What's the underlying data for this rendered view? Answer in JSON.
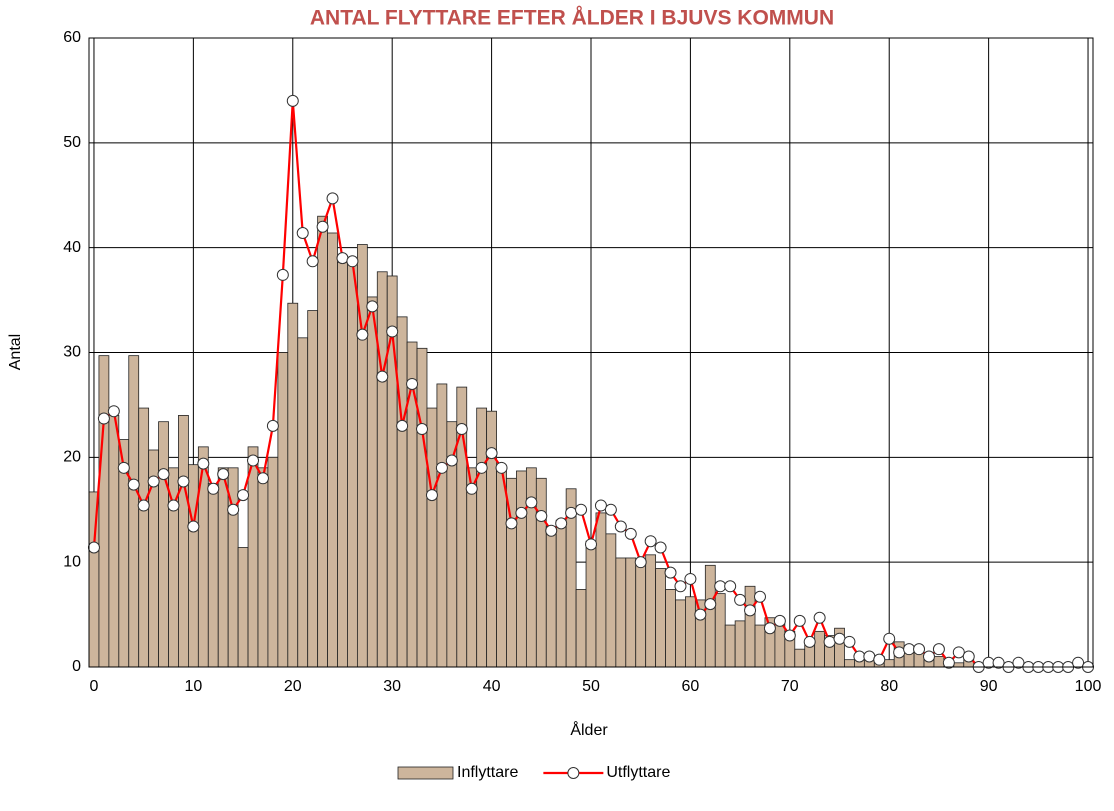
{
  "chart_data": {
    "type": "bar-line",
    "title": "ANTAL FLYTTARE EFTER ÅLDER I BJUVS KOMMUN",
    "x_label": "Ålder",
    "y_label": "Antal",
    "x": [
      0,
      1,
      2,
      3,
      4,
      5,
      6,
      7,
      8,
      9,
      10,
      11,
      12,
      13,
      14,
      15,
      16,
      17,
      18,
      19,
      20,
      21,
      22,
      23,
      24,
      25,
      26,
      27,
      28,
      29,
      30,
      31,
      32,
      33,
      34,
      35,
      36,
      37,
      38,
      39,
      40,
      41,
      42,
      43,
      44,
      45,
      46,
      47,
      48,
      49,
      50,
      51,
      52,
      53,
      54,
      55,
      56,
      57,
      58,
      59,
      60,
      61,
      62,
      63,
      64,
      65,
      66,
      67,
      68,
      69,
      70,
      71,
      72,
      73,
      74,
      75,
      76,
      77,
      78,
      79,
      80,
      81,
      82,
      83,
      84,
      85,
      86,
      87,
      88,
      89,
      90,
      91,
      92,
      93,
      94,
      95,
      96,
      97,
      98,
      99,
      100
    ],
    "series": [
      {
        "name": "Inflyttare",
        "type": "bar",
        "color": "#cdb59c",
        "values": [
          16.7,
          29.7,
          24,
          21.7,
          29.7,
          24.7,
          20.7,
          23.4,
          19,
          24,
          19.3,
          21,
          17.5,
          19,
          19,
          11.4,
          21,
          19,
          20,
          30,
          34.7,
          31.4,
          34,
          43,
          41.4,
          38.6,
          38.6,
          40.3,
          35.3,
          37.7,
          37.3,
          33.4,
          31,
          30.4,
          24.7,
          27,
          23.4,
          26.7,
          19,
          24.7,
          24.4,
          19,
          18,
          18.7,
          19,
          18,
          13.4,
          14,
          17,
          7.4,
          12,
          14.7,
          12.7,
          10.4,
          10.4,
          10,
          10.7,
          9.4,
          7.4,
          6.4,
          6.7,
          6.4,
          9.7,
          7,
          4,
          4.4,
          7.7,
          4,
          4.7,
          4.4,
          3.4,
          1.7,
          2.4,
          3.4,
          3,
          3.7,
          0.7,
          1,
          0.7,
          1,
          0.7,
          2.4,
          1.7,
          1.4,
          1,
          1,
          0.4,
          0.4,
          0.7,
          0,
          0,
          0,
          0,
          0,
          0,
          0,
          0,
          0,
          0,
          0,
          0
        ]
      },
      {
        "name": "Utflyttare",
        "type": "line",
        "color": "#ff0000",
        "values": [
          11.4,
          23.7,
          24.4,
          19,
          17.4,
          15.4,
          17.7,
          18.4,
          15.4,
          17.7,
          13.4,
          19.4,
          17,
          18.4,
          15,
          16.4,
          19.7,
          18,
          23,
          37.4,
          54,
          41.4,
          38.7,
          42,
          44.7,
          39,
          38.7,
          31.7,
          34.4,
          27.7,
          32,
          23,
          27,
          22.7,
          16.4,
          19,
          19.7,
          22.7,
          17,
          19,
          20.4,
          19,
          13.7,
          14.7,
          15.7,
          14.4,
          13,
          13.7,
          14.7,
          15,
          11.7,
          15.4,
          15,
          13.4,
          12.7,
          10,
          12,
          11.4,
          9,
          7.7,
          8.4,
          5,
          6,
          7.7,
          7.7,
          6.4,
          5.4,
          6.7,
          3.7,
          4.4,
          3,
          4.4,
          2.4,
          4.7,
          2.4,
          2.7,
          2.4,
          1,
          1,
          0.7,
          2.7,
          1.4,
          1.7,
          1.7,
          1,
          1.7,
          0.4,
          1.4,
          1,
          0,
          0.4,
          0.4,
          0,
          0.4,
          0,
          0,
          0,
          0,
          0,
          0.4,
          0
        ]
      }
    ],
    "xlim": [
      -0.5,
      100.5
    ],
    "xticks": [
      0,
      10,
      20,
      30,
      40,
      50,
      60,
      70,
      80,
      90,
      100
    ],
    "ylim": [
      0,
      60
    ],
    "yticks": [
      0,
      10,
      20,
      30,
      40,
      50,
      60
    ],
    "grid": true,
    "legend": "bottom"
  }
}
